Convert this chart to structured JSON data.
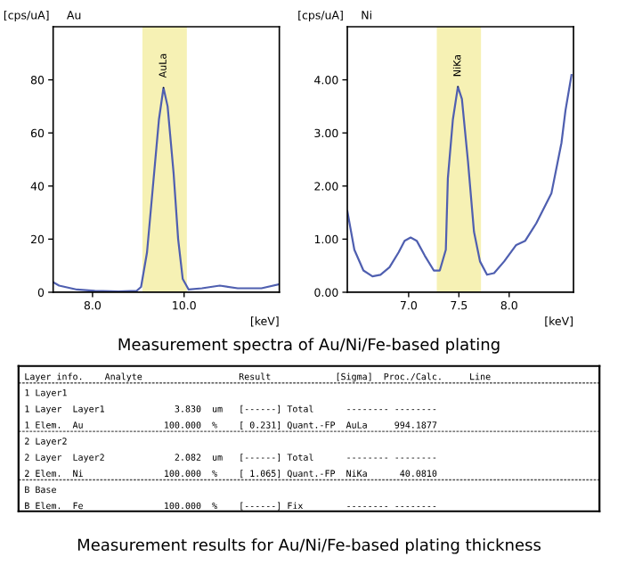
{
  "chart_data": [
    {
      "type": "line",
      "title": "Au",
      "ylabel": "[cps/uA]",
      "xlabel": "[keV]",
      "color": "#4f5fb0",
      "x": [
        7.14,
        7.27,
        7.66,
        8.05,
        8.57,
        8.96,
        9.06,
        9.19,
        9.32,
        9.45,
        9.55,
        9.64,
        9.77,
        9.87,
        9.97,
        10.1,
        10.39,
        10.78,
        11.17,
        11.69,
        12.08
      ],
      "values": [
        3.8,
        2.5,
        1.0,
        0.5,
        0.3,
        0.5,
        2,
        15,
        40,
        65,
        77,
        70,
        45,
        20,
        5,
        1,
        1.5,
        2.5,
        1.5,
        1.5,
        3
      ],
      "xlim": [
        7.14,
        12.08
      ],
      "ylim": [
        0,
        100
      ],
      "xticks": [
        {
          "value": 8,
          "label": "8.0"
        },
        {
          "value": 10,
          "label": "10.0"
        }
      ],
      "yticks": [
        0,
        20,
        40,
        60,
        80
      ],
      "bands": [
        {
          "axis": "x",
          "from": 9.09,
          "to": 10.06,
          "color": "#f6f1b4"
        }
      ],
      "annotations": [
        {
          "text": "AuLa",
          "x": 9.55,
          "y": 77
        },
        "Measurement spectra of Au/Ni/Fe-based plating"
      ]
    },
    {
      "type": "line",
      "title": "Ni",
      "ylabel": "[cps/uA]",
      "xlabel": "[keV]",
      "color": "#4f5fb0",
      "x": [
        6.39,
        6.46,
        6.55,
        6.64,
        6.72,
        6.81,
        6.9,
        6.96,
        7.02,
        7.08,
        7.16,
        7.25,
        7.31,
        7.37,
        7.39,
        7.44,
        7.49,
        7.53,
        7.59,
        7.65,
        7.71,
        7.78,
        7.85,
        7.95,
        8.07,
        8.16,
        8.27,
        8.42,
        8.52,
        8.56,
        8.62
      ],
      "values": [
        1.53,
        0.8,
        0.41,
        0.3,
        0.33,
        0.47,
        0.75,
        0.97,
        1.03,
        0.97,
        0.69,
        0.41,
        0.41,
        0.8,
        2.14,
        3.25,
        3.87,
        3.64,
        2.47,
        1.14,
        0.58,
        0.33,
        0.36,
        0.58,
        0.89,
        0.97,
        1.3,
        1.86,
        2.81,
        3.42,
        4.09
      ],
      "xlim": [
        6.39,
        8.64
      ],
      "ylim": [
        0,
        5
      ],
      "xticks": [
        {
          "value": 7,
          "label": "7.0"
        },
        {
          "value": 7.5,
          "label": "7.5"
        },
        {
          "value": 8,
          "label": "8.0"
        }
      ],
      "yticks": [
        {
          "value": 0,
          "label": "0.00"
        },
        {
          "value": 1,
          "label": "1.00"
        },
        {
          "value": 2,
          "label": "2.00"
        },
        {
          "value": 3,
          "label": "3.00"
        },
        {
          "value": 4,
          "label": "4.00"
        }
      ],
      "bands": [
        {
          "axis": "x",
          "from": 7.28,
          "to": 7.72,
          "color": "#f6f1b4"
        }
      ],
      "annotations": [
        {
          "text": "NiKa",
          "x": 7.49,
          "y": 3.87
        }
      ]
    },
    {
      "type": "other",
      "annotations": [
        "Layer info.    Analyte                  Result            [Sigma]  Proc./Calc.     Line",
        "1 Layer1",
        "1 Layer  Layer1             3.830  um   [------] Total      -------- --------",
        "1 Elem.  Au               100.000  %    [ 0.231] Quant.-FP  AuLa     994.1877",
        "2 Layer2",
        "2 Layer  Layer2             2.082  um   [------] Total      -------- --------",
        "2 Elem.  Ni               100.000  %    [ 1.065] Quant.-FP  NiKa      40.0810",
        "B Base",
        "B Elem.  Fe               100.000  %    [------] Fix        -------- --------",
        "Measurement results for Au/Ni/Fe-based plating thickness"
      ]
    }
  ]
}
